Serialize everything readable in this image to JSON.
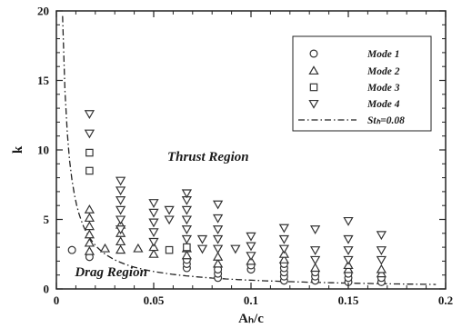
{
  "chart_data": {
    "type": "scatter",
    "xlabel": "Aₕ/c",
    "ylabel": "k",
    "xlim": [
      0,
      0.2
    ],
    "ylim": [
      0,
      20
    ],
    "x_ticks": [
      0,
      0.05,
      0.1,
      0.15,
      0.2
    ],
    "x_tick_labels": [
      "0",
      "0.05",
      "0.1",
      "0.15",
      "0.2"
    ],
    "y_ticks": [
      0,
      5,
      10,
      15,
      20
    ],
    "y_tick_labels": [
      "0",
      "5",
      "10",
      "15",
      "20"
    ],
    "grid": false,
    "legend_position": "top-right",
    "annotations": [
      {
        "text": "Thrust Region",
        "x": 0.057,
        "y": 9.2
      },
      {
        "text": "Drag Region",
        "x": 0.0095,
        "y": 0.9
      }
    ],
    "series": [
      {
        "name": "Mode 1",
        "marker": "circle",
        "points": [
          [
            0.008,
            2.8
          ],
          [
            0.017,
            2.3
          ],
          [
            0.067,
            1.5
          ],
          [
            0.067,
            1.8
          ],
          [
            0.067,
            2.1
          ],
          [
            0.083,
            0.8
          ],
          [
            0.083,
            1.1
          ],
          [
            0.083,
            1.4
          ],
          [
            0.1,
            1.4
          ],
          [
            0.1,
            1.7
          ],
          [
            0.117,
            0.6
          ],
          [
            0.117,
            0.9
          ],
          [
            0.117,
            1.2
          ],
          [
            0.117,
            1.5
          ],
          [
            0.117,
            1.8
          ],
          [
            0.133,
            0.6
          ],
          [
            0.133,
            0.9
          ],
          [
            0.133,
            1.2
          ],
          [
            0.15,
            0.5
          ],
          [
            0.15,
            0.8
          ],
          [
            0.15,
            1.1
          ],
          [
            0.167,
            0.5
          ],
          [
            0.167,
            0.8
          ]
        ]
      },
      {
        "name": "Mode 2",
        "marker": "triangle-up",
        "points": [
          [
            0.017,
            2.7
          ],
          [
            0.017,
            3.3
          ],
          [
            0.017,
            3.9
          ],
          [
            0.017,
            4.5
          ],
          [
            0.017,
            5.1
          ],
          [
            0.017,
            5.7
          ],
          [
            0.025,
            2.9
          ],
          [
            0.033,
            2.8
          ],
          [
            0.033,
            3.4
          ],
          [
            0.033,
            4.0
          ],
          [
            0.033,
            4.6
          ],
          [
            0.042,
            2.9
          ],
          [
            0.05,
            2.5
          ],
          [
            0.05,
            3.0
          ],
          [
            0.067,
            2.4
          ],
          [
            0.067,
            2.9
          ],
          [
            0.083,
            1.8
          ],
          [
            0.083,
            2.3
          ],
          [
            0.1,
            2.0
          ],
          [
            0.117,
            2.1
          ],
          [
            0.117,
            2.5
          ],
          [
            0.133,
            1.5
          ],
          [
            0.15,
            1.4
          ],
          [
            0.15,
            1.7
          ],
          [
            0.167,
            1.1
          ],
          [
            0.167,
            1.4
          ]
        ]
      },
      {
        "name": "Mode 3",
        "marker": "square",
        "points": [
          [
            0.017,
            8.5
          ],
          [
            0.017,
            9.8
          ],
          [
            0.058,
            2.8
          ],
          [
            0.067,
            3.0
          ]
        ]
      },
      {
        "name": "Mode 4",
        "marker": "triangle-down",
        "points": [
          [
            0.017,
            11.2
          ],
          [
            0.017,
            12.6
          ],
          [
            0.033,
            4.3
          ],
          [
            0.033,
            5.0
          ],
          [
            0.033,
            5.7
          ],
          [
            0.033,
            6.4
          ],
          [
            0.033,
            7.1
          ],
          [
            0.033,
            7.8
          ],
          [
            0.05,
            3.4
          ],
          [
            0.05,
            4.1
          ],
          [
            0.05,
            4.8
          ],
          [
            0.05,
            5.5
          ],
          [
            0.05,
            6.2
          ],
          [
            0.058,
            5.0
          ],
          [
            0.058,
            5.7
          ],
          [
            0.067,
            3.6
          ],
          [
            0.067,
            4.3
          ],
          [
            0.067,
            5.0
          ],
          [
            0.067,
            5.7
          ],
          [
            0.067,
            6.4
          ],
          [
            0.067,
            6.9
          ],
          [
            0.075,
            2.9
          ],
          [
            0.075,
            3.6
          ],
          [
            0.083,
            2.9
          ],
          [
            0.083,
            3.6
          ],
          [
            0.083,
            4.3
          ],
          [
            0.083,
            5.1
          ],
          [
            0.083,
            6.1
          ],
          [
            0.092,
            2.9
          ],
          [
            0.1,
            2.4
          ],
          [
            0.1,
            3.1
          ],
          [
            0.1,
            3.8
          ],
          [
            0.117,
            2.9
          ],
          [
            0.117,
            3.6
          ],
          [
            0.117,
            4.4
          ],
          [
            0.133,
            2.1
          ],
          [
            0.133,
            2.8
          ],
          [
            0.133,
            4.3
          ],
          [
            0.15,
            2.1
          ],
          [
            0.15,
            2.8
          ],
          [
            0.15,
            3.6
          ],
          [
            0.15,
            4.9
          ],
          [
            0.167,
            2.1
          ],
          [
            0.167,
            2.8
          ],
          [
            0.167,
            3.9
          ]
        ]
      },
      {
        "name": "Stₕ=0.08",
        "type": "line",
        "style": "dash-dot",
        "formula": "k = 0.08*pi/(4*x)",
        "x_range": [
          0.0032,
          0.195
        ]
      }
    ]
  }
}
